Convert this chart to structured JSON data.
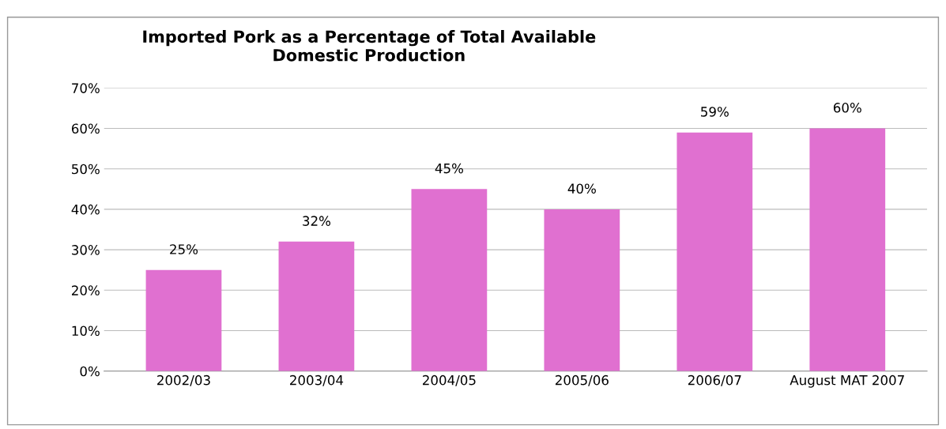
{
  "chart_data": {
    "type": "bar",
    "title": "Imported Pork as a Percentage of Total Available\nDomestic Production",
    "categories": [
      "2002/03",
      "2003/04",
      "2004/05",
      "2005/06",
      "2006/07",
      "August MAT 2007"
    ],
    "values": [
      25,
      32,
      45,
      40,
      59,
      60
    ],
    "color": "#e070d0",
    "value_labels": [
      "25%",
      "32%",
      "45%",
      "40%",
      "59%",
      "60%"
    ],
    "ylim": [
      0,
      70
    ],
    "yticks": [
      {
        "value": 0,
        "label": "0%"
      },
      {
        "value": 10,
        "label": "10%"
      },
      {
        "value": 20,
        "label": "20%"
      },
      {
        "value": 30,
        "label": "30%"
      },
      {
        "value": 40,
        "label": "40%"
      },
      {
        "value": 50,
        "label": "50%"
      },
      {
        "value": 60,
        "label": "60%"
      },
      {
        "value": 70,
        "label": "70%"
      }
    ],
    "grid": "y",
    "legend": false
  }
}
